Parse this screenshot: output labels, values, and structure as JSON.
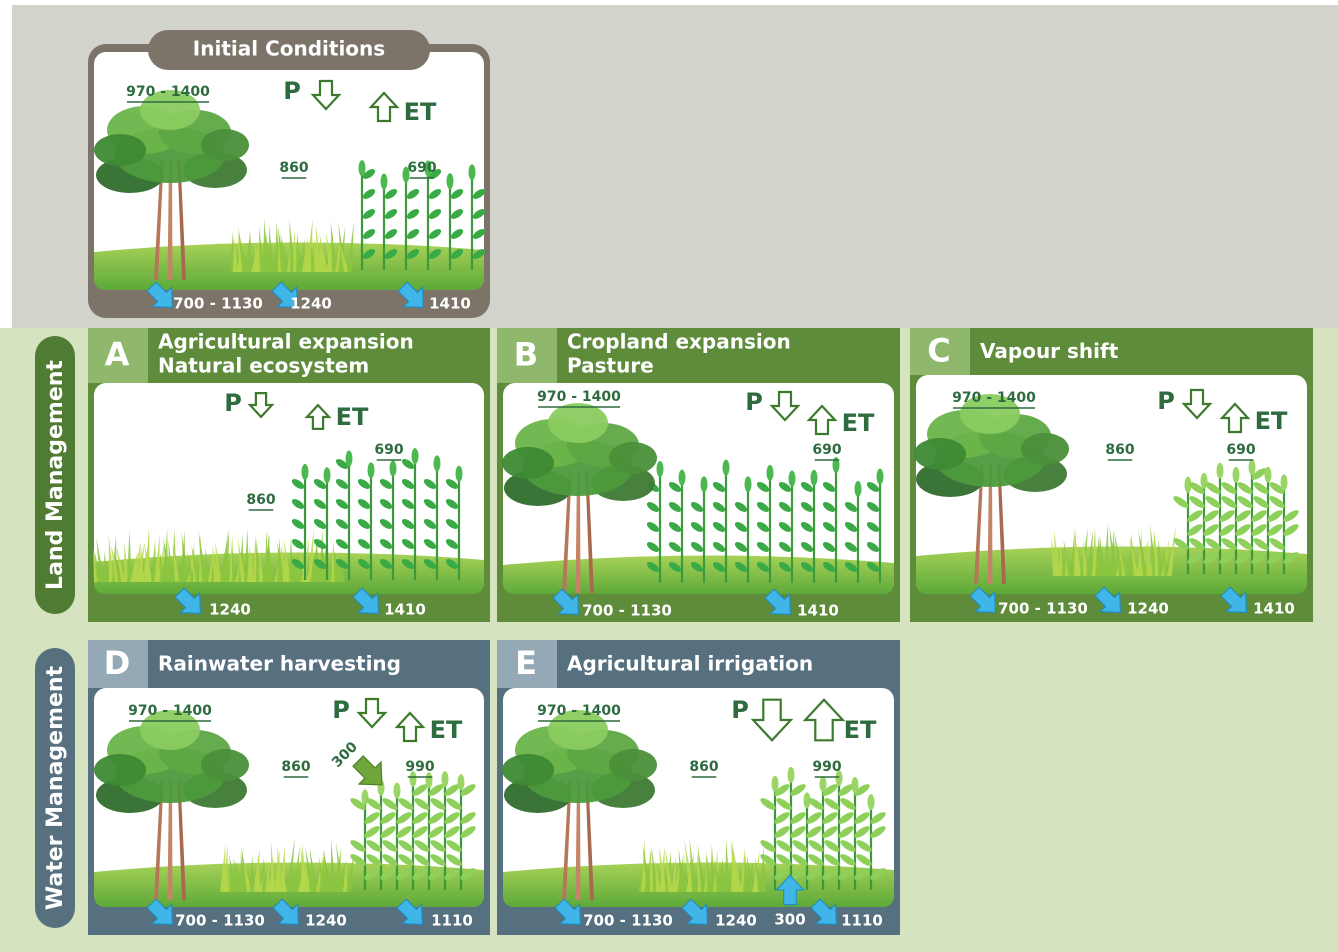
{
  "side_labels": [
    "Land Management",
    "Water Management"
  ],
  "panels": [
    {
      "title": [
        "Initial Conditions"
      ],
      "forest": "970 - 1400",
      "p": "P",
      "et": "ET",
      "grass": "860",
      "crop": "690",
      "drainage": [
        "700 - 1130",
        "1240",
        "1410"
      ]
    },
    {
      "letter": "A",
      "title": [
        "Agricultural expansion",
        "Natural ecosystem"
      ],
      "p": "P",
      "et": "ET",
      "grass": "860",
      "crop": "690",
      "drainage": [
        "1240",
        "1410"
      ]
    },
    {
      "letter": "B",
      "title": [
        "Cropland expansion",
        "Pasture"
      ],
      "forest": "970 - 1400",
      "p": "P",
      "et": "ET",
      "crop": "690",
      "drainage": [
        "700 - 1130",
        "1410"
      ]
    },
    {
      "letter": "C",
      "title": [
        "Vapour shift"
      ],
      "forest": "970 - 1400",
      "p": "P",
      "et": "ET",
      "grass": "860",
      "crop": "690",
      "drainage": [
        "700 - 1130",
        "1240",
        "1410"
      ]
    },
    {
      "letter": "D",
      "title": [
        "Rainwater harvesting"
      ],
      "forest": "970 - 1400",
      "p": "P",
      "et": "ET",
      "grass": "860",
      "crop": "990",
      "irrigation": "300",
      "drainage": [
        "700 - 1130",
        "1240",
        "1110"
      ]
    },
    {
      "letter": "E",
      "title": [
        "Agricultural irrigation"
      ],
      "forest": "970 - 1400",
      "p": "P",
      "et": "ET",
      "grass": "860",
      "crop": "990",
      "irrigation": "300",
      "drainage": [
        "700 - 1130",
        "1240",
        "1110"
      ]
    }
  ]
}
